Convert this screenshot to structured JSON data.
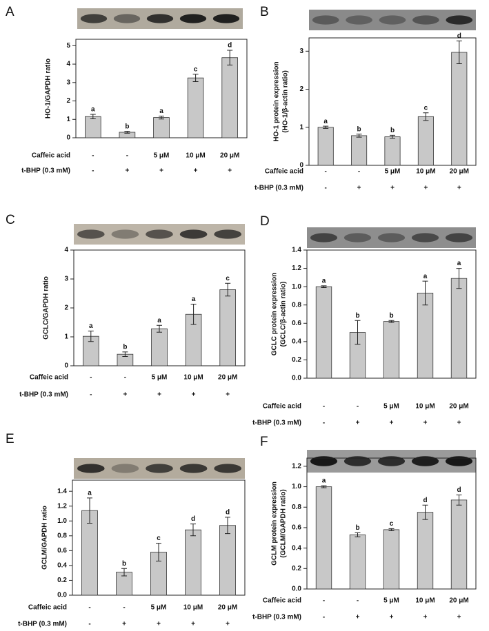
{
  "chart_data": [
    {
      "type": "bar",
      "panel": "A",
      "ylabel": [
        "HO-1/GAPDH ratio"
      ],
      "values": [
        1.15,
        0.3,
        1.1,
        3.25,
        4.35
      ],
      "errors": [
        0.12,
        0.05,
        0.08,
        0.2,
        0.4
      ],
      "letters": [
        "a",
        "b",
        "a",
        "c",
        "d"
      ],
      "treatments": [
        {
          "name": "Caffeic acid",
          "labels": [
            "-",
            "-",
            "5 μM",
            "10 μM",
            "20 μM"
          ]
        },
        {
          "name": "t-BHP (0.3 mM)",
          "labels": [
            "-",
            "+",
            "+",
            "+",
            "+"
          ]
        }
      ],
      "ylim": [
        0,
        5.35
      ],
      "yticks": [
        0,
        1,
        2,
        3,
        4,
        5
      ],
      "color": "#c8c8c8"
    },
    {
      "type": "bar",
      "panel": "B",
      "ylabel": [
        "HO-1 protein expression",
        "(HO-1/β-actin ratio)"
      ],
      "values": [
        1.0,
        0.78,
        0.75,
        1.28,
        2.97
      ],
      "errors": [
        0.03,
        0.04,
        0.04,
        0.1,
        0.3
      ],
      "letters": [
        "a",
        "b",
        "b",
        "c",
        "d"
      ],
      "treatments": [
        {
          "name": "Caffeic acid",
          "labels": [
            "-",
            "-",
            "5 μM",
            "10 μM",
            "20 μM"
          ]
        },
        {
          "name": "t-BHP (0.3 mM)",
          "labels": [
            "-",
            "+",
            "+",
            "+",
            "+"
          ]
        }
      ],
      "ylim": [
        0,
        3.35
      ],
      "yticks": [
        0,
        1,
        2,
        3
      ],
      "color": "#c8c8c8"
    },
    {
      "type": "bar",
      "panel": "C",
      "ylabel": [
        "GCLC/GAPDH ratio"
      ],
      "values": [
        1.02,
        0.4,
        1.28,
        1.78,
        2.63
      ],
      "errors": [
        0.18,
        0.08,
        0.12,
        0.35,
        0.22
      ],
      "letters": [
        "a",
        "b",
        "a",
        "a",
        "c"
      ],
      "treatments": [
        {
          "name": "Caffeic acid",
          "labels": [
            "-",
            "-",
            "5 μM",
            "10 μM",
            "20 μM"
          ]
        },
        {
          "name": "t-BHP (0.3 mM)",
          "labels": [
            "-",
            "+",
            "+",
            "+",
            "+"
          ]
        }
      ],
      "ylim": [
        0,
        4
      ],
      "yticks": [
        0,
        1,
        2,
        3,
        4
      ],
      "color": "#c8c8c8"
    },
    {
      "type": "bar",
      "panel": "D",
      "ylabel": [
        "GCLC protein expression",
        "(GCLC/β-actin ratio)"
      ],
      "values": [
        1.0,
        0.5,
        0.62,
        0.93,
        1.09
      ],
      "errors": [
        0.01,
        0.13,
        0.01,
        0.13,
        0.11
      ],
      "letters": [
        "a",
        "b",
        "b",
        "a",
        "a"
      ],
      "treatments": [
        {
          "name": "Caffeic acid",
          "labels": [
            "-",
            "-",
            "5 μM",
            "10 μM",
            "20 μM"
          ]
        },
        {
          "name": "t-BHP (0.3 mM)",
          "labels": [
            "-",
            "+",
            "+",
            "+",
            "+"
          ]
        }
      ],
      "ylim": [
        0,
        1.4
      ],
      "yticks": [
        {
          "value": 0,
          "label": "0.0"
        },
        0.2,
        0.4,
        0.6,
        0.8,
        {
          "value": 1,
          "label": "1.0"
        },
        1.2,
        1.4
      ],
      "color": "#c8c8c8"
    },
    {
      "type": "bar",
      "panel": "E",
      "ylabel": [
        "GCLM/GAPDH ratio"
      ],
      "values": [
        1.14,
        0.31,
        0.58,
        0.88,
        0.94
      ],
      "errors": [
        0.17,
        0.05,
        0.12,
        0.08,
        0.11
      ],
      "letters": [
        "a",
        "b",
        "c",
        "d",
        "d"
      ],
      "treatments": [
        {
          "name": "Caffeic acid",
          "labels": [
            "-",
            "-",
            "5 μM",
            "10 μM",
            "20 μM"
          ]
        },
        {
          "name": "t-BHP (0.3 mM)",
          "labels": [
            "-",
            "+",
            "+",
            "+",
            "+"
          ]
        }
      ],
      "ylim": [
        0,
        1.55
      ],
      "yticks": [
        {
          "value": 0,
          "label": "0.0"
        },
        0.2,
        0.4,
        0.6,
        0.8,
        {
          "value": 1,
          "label": "1.0"
        },
        1.2,
        1.4
      ],
      "color": "#c8c8c8"
    },
    {
      "type": "bar",
      "panel": "F",
      "ylabel": [
        "GCLM protein expression",
        "(GCLM/GAPDH ratio)"
      ],
      "values": [
        1.0,
        0.53,
        0.58,
        0.75,
        0.87
      ],
      "errors": [
        0.01,
        0.02,
        0.01,
        0.07,
        0.05
      ],
      "letters": [
        "a",
        "b",
        "c",
        "d",
        "d"
      ],
      "treatments": [
        {
          "name": "Caffeic acid",
          "labels": [
            "-",
            "-",
            "5 μM",
            "10 μM",
            "20 μM"
          ]
        },
        {
          "name": "t-BHP (0.3 mM)",
          "labels": [
            "-",
            "+",
            "+",
            "+",
            "+"
          ]
        }
      ],
      "ylim": [
        0,
        1.28
      ],
      "yticks": [
        {
          "value": 0,
          "label": "0.0"
        },
        0.2,
        0.4,
        0.6,
        0.8,
        {
          "value": 1,
          "label": "1.0"
        },
        1.2
      ],
      "color": "#c8c8c8"
    }
  ]
}
